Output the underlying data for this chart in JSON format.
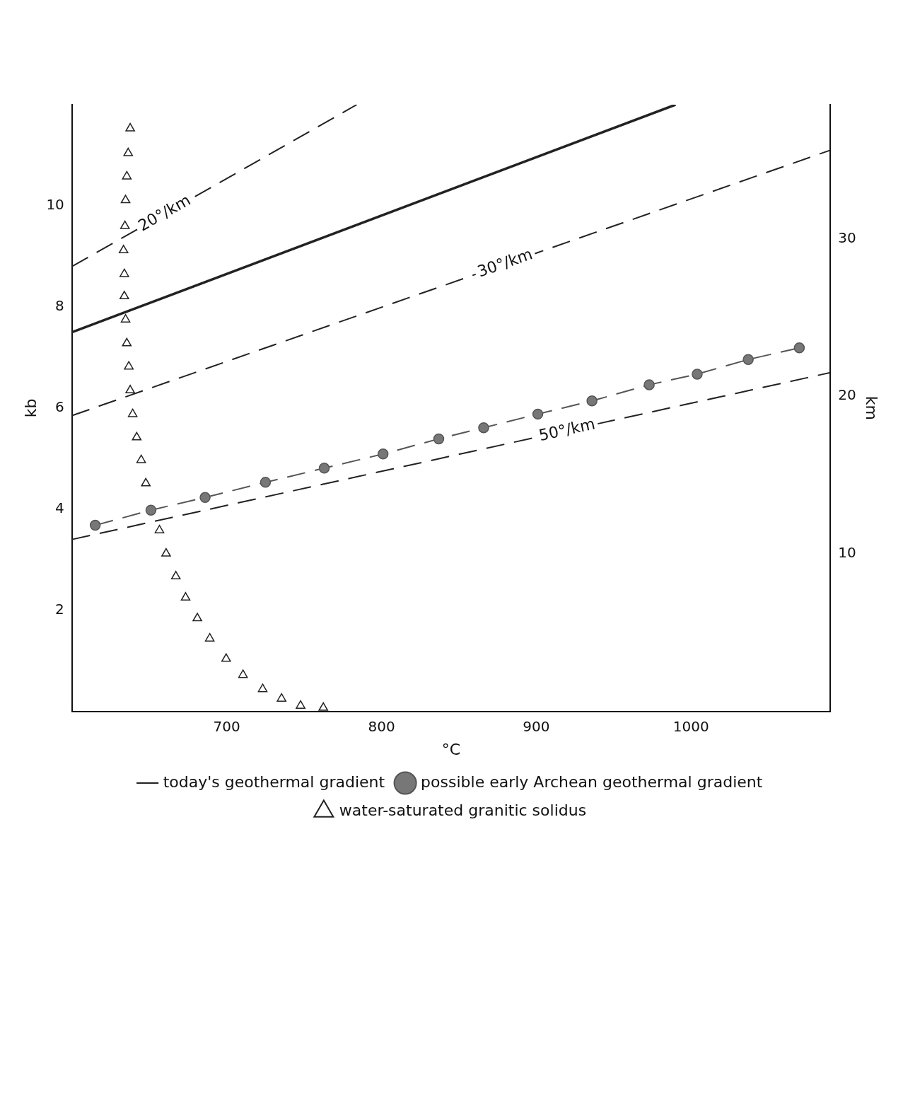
{
  "chart_data": {
    "type": "line",
    "xlabel": "°C",
    "ylabel": "kb",
    "y2label": "km",
    "xlim": [
      600,
      1090
    ],
    "xticks": [
      700,
      800,
      900,
      1000
    ],
    "ylim": [
      0,
      12
    ],
    "yticks": [
      2,
      4,
      6,
      8,
      10
    ],
    "y2lim": [
      0,
      38.5
    ],
    "y2ticks": [
      10,
      20,
      30
    ],
    "grid": false,
    "legend": "bottom",
    "series": [
      {
        "color": "#222222",
        "line_style": "dashed",
        "marker": "none",
        "x": [
          600,
          784
        ],
        "values": [
          8.8,
          12
        ]
      },
      {
        "color": "#222222",
        "line_style": "dashed",
        "marker": "none",
        "x": [
          600,
          1090
        ],
        "values": [
          5.85,
          11.1
        ]
      },
      {
        "color": "#222222",
        "line_style": "dashed",
        "marker": "none",
        "x": [
          600,
          1090
        ],
        "values": [
          3.4,
          6.7
        ]
      },
      {
        "name": "today's geothermal gradient",
        "color": "#222222",
        "line_style": "solid",
        "marker": "none",
        "x": [
          600,
          990
        ],
        "values": [
          7.5,
          12
        ]
      },
      {
        "name": "possible early Archean geothermal gradient",
        "color": "#555555",
        "line_style": "dashed",
        "marker": "circle",
        "x": [
          615,
          651,
          686,
          725,
          763,
          801,
          837,
          866,
          901,
          936,
          973,
          1004,
          1037,
          1070
        ],
        "values": [
          3.68,
          3.98,
          4.23,
          4.53,
          4.81,
          5.09,
          5.39,
          5.61,
          5.88,
          6.14,
          6.46,
          6.67,
          6.96,
          7.19
        ]
      },
      {
        "type": "scatter",
        "name": "water-saturated granitic solidus",
        "color": "#222222",
        "marker": "triangle",
        "x": [
          637.6,
          636.3,
          635.4,
          634.6,
          634.2,
          633.3,
          633.8,
          633.8,
          634.6,
          635.4,
          636.7,
          637.6,
          639.2,
          641.8,
          644.7,
          647.7,
          656.5,
          660.8,
          667.1,
          673.4,
          681,
          689,
          699.6,
          710.5,
          723.2,
          735.4,
          747.7,
          762.4
        ],
        "values": [
          11.53,
          11.04,
          10.58,
          10.11,
          9.6,
          9.12,
          8.65,
          8.21,
          7.75,
          7.28,
          6.82,
          6.35,
          5.88,
          5.42,
          4.97,
          4.51,
          3.58,
          3.12,
          2.67,
          2.25,
          1.84,
          1.44,
          1.04,
          0.72,
          0.44,
          0.25,
          0.11,
          0.07
        ]
      }
    ],
    "annotations": [
      {
        "text": "20°/km",
        "x": 660,
        "y": 9.84
      },
      {
        "text": "30°/km",
        "x": 880,
        "y": 8.85
      },
      {
        "text": "50°/km",
        "x": 920,
        "y": 5.55
      }
    ]
  }
}
